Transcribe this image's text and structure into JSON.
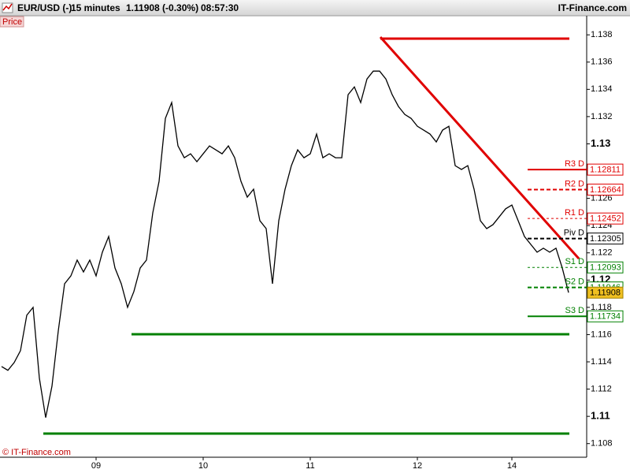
{
  "header": {
    "symbol": "EUR/USD (-)",
    "interval": "15 minutes",
    "quote": "1.11908 (-0.30%)",
    "time": "08:57:30",
    "site": "IT-Finance.com"
  },
  "footer": "© IT-Finance.com",
  "chart_data": {
    "type": "line",
    "panel_label": "Price",
    "categories": [
      null,
      null,
      null,
      null,
      null,
      null,
      null,
      null,
      null,
      null,
      null,
      null,
      null,
      null,
      null,
      "09",
      null,
      null,
      null,
      null,
      null,
      null,
      null,
      null,
      null,
      null,
      null,
      null,
      null,
      null,
      null,
      null,
      "10",
      null,
      null,
      null,
      null,
      null,
      null,
      null,
      null,
      null,
      null,
      null,
      null,
      null,
      null,
      null,
      null,
      "11",
      null,
      null,
      null,
      null,
      null,
      null,
      null,
      null,
      null,
      null,
      null,
      null,
      null,
      null,
      null,
      null,
      "12",
      null,
      null,
      null,
      null,
      null,
      null,
      null,
      null,
      null,
      null,
      null,
      null,
      null,
      null,
      "14",
      null,
      null,
      null,
      null,
      null,
      null,
      null,
      null,
      null
    ],
    "series": [
      {
        "color": "#000000",
        "values": [
          1.11366,
          1.11338,
          1.11395,
          1.11482,
          1.11742,
          1.118,
          1.1128,
          1.10991,
          1.11222,
          1.11627,
          1.11973,
          1.12031,
          1.12147,
          1.1206,
          1.12147,
          1.12031,
          1.12205,
          1.1232,
          1.12089,
          1.11973,
          1.118,
          1.11916,
          1.12089,
          1.12147,
          1.12494,
          1.12725,
          1.13187,
          1.13303,
          1.12985,
          1.12898,
          1.12927,
          1.12869,
          1.12927,
          1.12985,
          1.12956,
          1.12927,
          1.12985,
          1.12898,
          1.12725,
          1.12609,
          1.12667,
          1.12436,
          1.12378,
          1.11973,
          1.12436,
          1.12667,
          1.1284,
          1.12956,
          1.12898,
          1.12927,
          1.13072,
          1.12898,
          1.12927,
          1.12898,
          1.12898,
          1.13361,
          1.13418,
          1.13303,
          1.13476,
          1.13534,
          1.13534,
          1.13476,
          1.13361,
          1.13274,
          1.13216,
          1.13187,
          1.13129,
          1.13101,
          1.13072,
          1.13014,
          1.13101,
          1.13129,
          1.1284,
          1.12812,
          1.1284,
          1.12667,
          1.12436,
          1.12378,
          1.12407,
          1.12465,
          1.12523,
          1.12551,
          1.12436,
          1.1232,
          1.12262,
          1.12205,
          1.12234,
          1.12205,
          1.12234,
          1.12089,
          1.11908
        ]
      }
    ],
    "ylim": [
      1.107,
      1.1394
    ],
    "yticks": [
      1.108,
      1.11,
      1.112,
      1.114,
      1.116,
      1.118,
      1.12,
      1.122,
      1.124,
      1.126,
      1.128,
      1.13,
      1.132,
      1.134,
      1.136,
      1.138
    ],
    "levels": [
      {
        "label": "R3 D",
        "value": 1.12811,
        "color": "#e00000",
        "style": "solid"
      },
      {
        "label": "R2 D",
        "value": 1.12664,
        "color": "#e00000",
        "style": "dashed"
      },
      {
        "label": "R1 D",
        "value": 1.12452,
        "color": "#e00000",
        "style": "dotted"
      },
      {
        "label": "Piv D",
        "value": 1.12305,
        "color": "#000000",
        "style": "dashed"
      },
      {
        "label": "S1 D",
        "value": 1.12093,
        "color": "#008000",
        "style": "dotted"
      },
      {
        "label": "S2 D",
        "value": 1.11946,
        "color": "#008000",
        "style": "dashed"
      },
      {
        "label": "S3 D",
        "value": 1.11734,
        "color": "#008000",
        "style": "solid"
      }
    ],
    "last_price": 1.11908,
    "last_price_color": "#f0c020"
  }
}
